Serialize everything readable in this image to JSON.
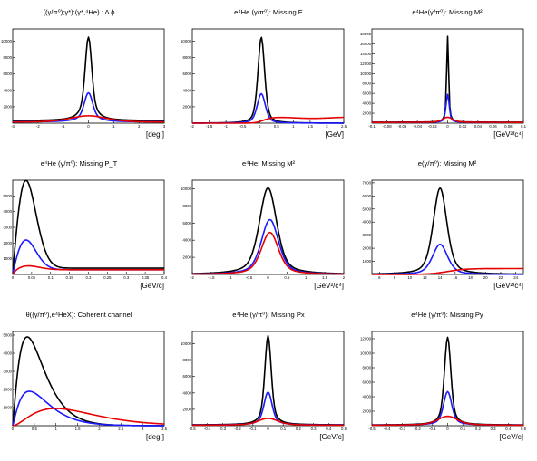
{
  "panels": [
    {
      "title": "((γ/π⁰);γ*):(γ*,⁴He) : Δ ϕ",
      "xunit": "[deg.]",
      "type": "line",
      "xlim": [
        -3,
        3
      ],
      "ylim": [
        0,
        11500
      ],
      "xticks": [
        -3,
        -2,
        -1,
        0,
        1,
        2,
        3
      ],
      "yticks": [
        2000,
        4000,
        6000,
        8000,
        10000
      ],
      "series": [
        {
          "color": "#000000",
          "shape": "peak",
          "mu": 0,
          "sigma": 0.12,
          "gamma": 0.22,
          "peak": 10500,
          "bg": 300
        },
        {
          "color": "#1a1aff",
          "shape": "peak",
          "mu": 0,
          "sigma": 0.15,
          "gamma": 0.3,
          "peak": 3700,
          "bg": 150
        },
        {
          "color": "#e60000",
          "shape": "peak",
          "mu": 0,
          "sigma": 0.7,
          "gamma": 1.0,
          "peak": 900,
          "bg": 100
        }
      ]
    },
    {
      "title": "e⁴He (γ/π⁰): Missing E",
      "xunit": "[GeV]",
      "type": "line",
      "xlim": [
        -2,
        2.5
      ],
      "ylim": [
        0,
        11500
      ],
      "xticks": [
        -2,
        -1.5,
        -1,
        -0.5,
        0,
        0.5,
        1,
        1.5,
        2,
        2.5
      ],
      "yticks": [
        2000,
        4000,
        6000,
        8000,
        10000
      ],
      "series": [
        {
          "color": "#000000",
          "shape": "peak",
          "mu": 0.05,
          "sigma": 0.1,
          "gamma": 0.12,
          "peak": 10500,
          "bg": 0
        },
        {
          "color": "#1a1aff",
          "shape": "peak",
          "mu": 0.05,
          "sigma": 0.12,
          "gamma": 0.15,
          "peak": 3600,
          "bg": 0
        },
        {
          "color": "#e60000",
          "shape": "plateau",
          "x0": 0.1,
          "width": 0.12,
          "level": 650
        }
      ]
    },
    {
      "title": "e⁴He(γ/π⁰): Missing M²",
      "xunit": "[GeV²/c⁴]",
      "type": "line",
      "xlim": [
        -0.1,
        0.1
      ],
      "ylim": [
        0,
        19000
      ],
      "xticks": [
        -0.1,
        -0.08,
        -0.06,
        -0.04,
        -0.02,
        0,
        0.02,
        0.04,
        0.06,
        0.08,
        0.1
      ],
      "yticks": [
        2000,
        4000,
        6000,
        8000,
        10000,
        12000,
        14000,
        16000,
        18000
      ],
      "series": [
        {
          "color": "#000000",
          "shape": "peak",
          "mu": 0,
          "sigma": 0.0012,
          "gamma": 0.002,
          "peak": 17500,
          "bg": 200
        },
        {
          "color": "#1a1aff",
          "shape": "peak",
          "mu": 0,
          "sigma": 0.002,
          "gamma": 0.003,
          "peak": 5800,
          "bg": 150
        },
        {
          "color": "#e60000",
          "shape": "peak",
          "mu": 0,
          "sigma": 0.006,
          "gamma": 0.01,
          "peak": 1200,
          "bg": 150
        }
      ]
    },
    {
      "title": "e⁴He (γ/π⁰): Missing P_T",
      "xunit": "[GeV/c]",
      "type": "line",
      "xlim": [
        0,
        0.4
      ],
      "ylim": [
        0,
        6000
      ],
      "xticks": [
        0,
        0.05,
        0.1,
        0.15,
        0.2,
        0.25,
        0.3,
        0.35,
        0.4
      ],
      "yticks": [
        1000,
        2000,
        3000,
        4000,
        5000
      ],
      "series": [
        {
          "color": "#000000",
          "shape": "rayleigh",
          "s": 0.035,
          "amp": 5600,
          "tail": 400
        },
        {
          "color": "#1a1aff",
          "shape": "rayleigh",
          "s": 0.035,
          "amp": 1900,
          "tail": 300
        },
        {
          "color": "#e60000",
          "shape": "rayleigh",
          "s": 0.04,
          "amp": 250,
          "tail": 300
        }
      ]
    },
    {
      "title": "e⁴He: Missing M²",
      "xunit": "[GeV²/c⁴]",
      "type": "line",
      "xlim": [
        -2,
        2
      ],
      "ylim": [
        0,
        11000
      ],
      "xticks": [
        -2,
        -1.5,
        -1,
        -0.5,
        0,
        0.5,
        1,
        1.5,
        2
      ],
      "yticks": [
        2000,
        4000,
        6000,
        8000,
        10000
      ],
      "series": [
        {
          "color": "#000000",
          "shape": "peak",
          "mu": 0,
          "sigma": 0.22,
          "gamma": 0.3,
          "peak": 10100,
          "bg": 0
        },
        {
          "color": "#1a1aff",
          "shape": "peak",
          "mu": 0.05,
          "sigma": 0.22,
          "gamma": 0.3,
          "peak": 6400,
          "bg": 0
        },
        {
          "color": "#e60000",
          "shape": "peak",
          "mu": 0.05,
          "sigma": 0.22,
          "gamma": 0.3,
          "peak": 4900,
          "bg": 0
        }
      ]
    },
    {
      "title": "e(γ/π⁰): Missing M²",
      "xunit": "[GeV²/c⁴]",
      "type": "line",
      "xlim": [
        5,
        25
      ],
      "ylim": [
        0,
        7200
      ],
      "xticks": [
        6,
        8,
        10,
        12,
        14,
        16,
        18,
        20,
        22,
        24
      ],
      "yticks": [
        1000,
        2000,
        3000,
        4000,
        5000,
        6000,
        7000
      ],
      "series": [
        {
          "color": "#000000",
          "shape": "peak",
          "mu": 14,
          "sigma": 0.9,
          "gamma": 1.1,
          "peak": 6600,
          "bg": 0
        },
        {
          "color": "#1a1aff",
          "shape": "peak",
          "mu": 14,
          "sigma": 1.0,
          "gamma": 1.2,
          "peak": 2300,
          "bg": 0
        },
        {
          "color": "#e60000",
          "shape": "step",
          "x0": 15,
          "width": 1.2,
          "level": 450
        }
      ]
    },
    {
      "title": "θ((γ/π⁰),e⁴HeX): Coherent channel",
      "xunit": "[deg.]",
      "type": "line",
      "xlim": [
        0,
        3.5
      ],
      "ylim": [
        0,
        5200
      ],
      "xticks": [
        0,
        0.5,
        1,
        1.5,
        2,
        2.5,
        3,
        3.5
      ],
      "yticks": [
        1000,
        2000,
        3000,
        4000,
        5000
      ],
      "series": [
        {
          "color": "#000000",
          "shape": "gamma",
          "k": 2.2,
          "theta": 0.28,
          "amp": 4900
        },
        {
          "color": "#1a1aff",
          "shape": "gamma",
          "k": 2.2,
          "theta": 0.32,
          "amp": 1900
        },
        {
          "color": "#e60000",
          "shape": "gamma",
          "k": 2.8,
          "theta": 0.55,
          "amp": 950
        }
      ]
    },
    {
      "title": "e⁴He (γ/π⁰): Missing Px",
      "xunit": "[GeV/c]",
      "type": "line",
      "xlim": [
        -0.5,
        0.5
      ],
      "ylim": [
        0,
        11500
      ],
      "xticks": [
        -0.5,
        -0.4,
        -0.3,
        -0.2,
        -0.1,
        0,
        0.1,
        0.2,
        0.3,
        0.4,
        0.5
      ],
      "yticks": [
        2000,
        4000,
        6000,
        8000,
        10000
      ],
      "series": [
        {
          "color": "#000000",
          "shape": "peak",
          "mu": 0,
          "sigma": 0.02,
          "gamma": 0.03,
          "peak": 11000,
          "bg": 100
        },
        {
          "color": "#1a1aff",
          "shape": "peak",
          "mu": 0,
          "sigma": 0.025,
          "gamma": 0.04,
          "peak": 4100,
          "bg": 80
        },
        {
          "color": "#e60000",
          "shape": "peak",
          "mu": 0,
          "sigma": 0.06,
          "gamma": 0.1,
          "peak": 900,
          "bg": 50
        }
      ]
    },
    {
      "title": "e⁴He (γ/π⁰): Missing Py",
      "xunit": "[GeV/c]",
      "type": "line",
      "xlim": [
        -0.5,
        0.5
      ],
      "ylim": [
        0,
        13000
      ],
      "xticks": [
        -0.5,
        -0.4,
        -0.3,
        -0.2,
        -0.1,
        0,
        0.1,
        0.2,
        0.3,
        0.4,
        0.5
      ],
      "yticks": [
        2000,
        4000,
        6000,
        8000,
        10000,
        12000
      ],
      "series": [
        {
          "color": "#000000",
          "shape": "peak",
          "mu": 0,
          "sigma": 0.02,
          "gamma": 0.03,
          "peak": 12200,
          "bg": 100
        },
        {
          "color": "#1a1aff",
          "shape": "peak",
          "mu": 0,
          "sigma": 0.025,
          "gamma": 0.04,
          "peak": 4700,
          "bg": 80
        },
        {
          "color": "#e60000",
          "shape": "peak",
          "mu": 0,
          "sigma": 0.06,
          "gamma": 0.1,
          "peak": 1300,
          "bg": 50
        }
      ]
    }
  ]
}
